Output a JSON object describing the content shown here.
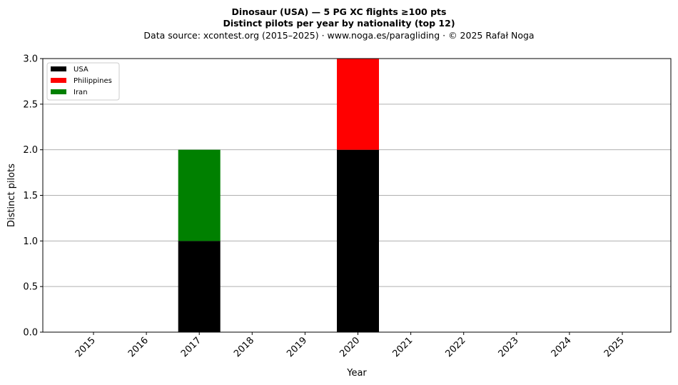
{
  "header": {
    "title_line1": "Dinosaur (USA)  —  5 PG XC flights ≥100 pts",
    "title_line2": "Distinct pilots per year by nationality (top 12)",
    "subtitle": "Data source: xcontest.org (2015–2025)  ·  www.noga.es/paragliding  ·  © 2025 Rafał Noga"
  },
  "chart_data": {
    "type": "bar",
    "stacked": true,
    "title": "Dinosaur (USA)  —  5 PG XC flights ≥100 pts\nDistinct pilots per year by nationality (top 12)",
    "subtitle": "Data source: xcontest.org (2015–2025)  ·  www.noga.es/paragliding  ·  © 2025 Rafał Noga",
    "xlabel": "Year",
    "ylabel": "Distinct pilots",
    "categories": [
      "2015",
      "2016",
      "2017",
      "2018",
      "2019",
      "2020",
      "2021",
      "2022",
      "2023",
      "2024",
      "2025"
    ],
    "series": [
      {
        "name": "USA",
        "color": "#000000",
        "values": [
          0,
          0,
          1,
          0,
          0,
          2,
          0,
          0,
          0,
          0,
          0
        ]
      },
      {
        "name": "Philippines",
        "color": "#ff0000",
        "values": [
          0,
          0,
          0,
          0,
          0,
          1,
          0,
          0,
          0,
          0,
          0
        ]
      },
      {
        "name": "Iran",
        "color": "#008000",
        "values": [
          0,
          0,
          1,
          0,
          0,
          0,
          0,
          0,
          0,
          0,
          0
        ]
      }
    ],
    "ylim": [
      0,
      3.0
    ],
    "yticks": [
      "0.0",
      "0.5",
      "1.0",
      "1.5",
      "2.0",
      "2.5",
      "3.0"
    ],
    "grid": "horizontal",
    "legend_position": "top-left"
  }
}
